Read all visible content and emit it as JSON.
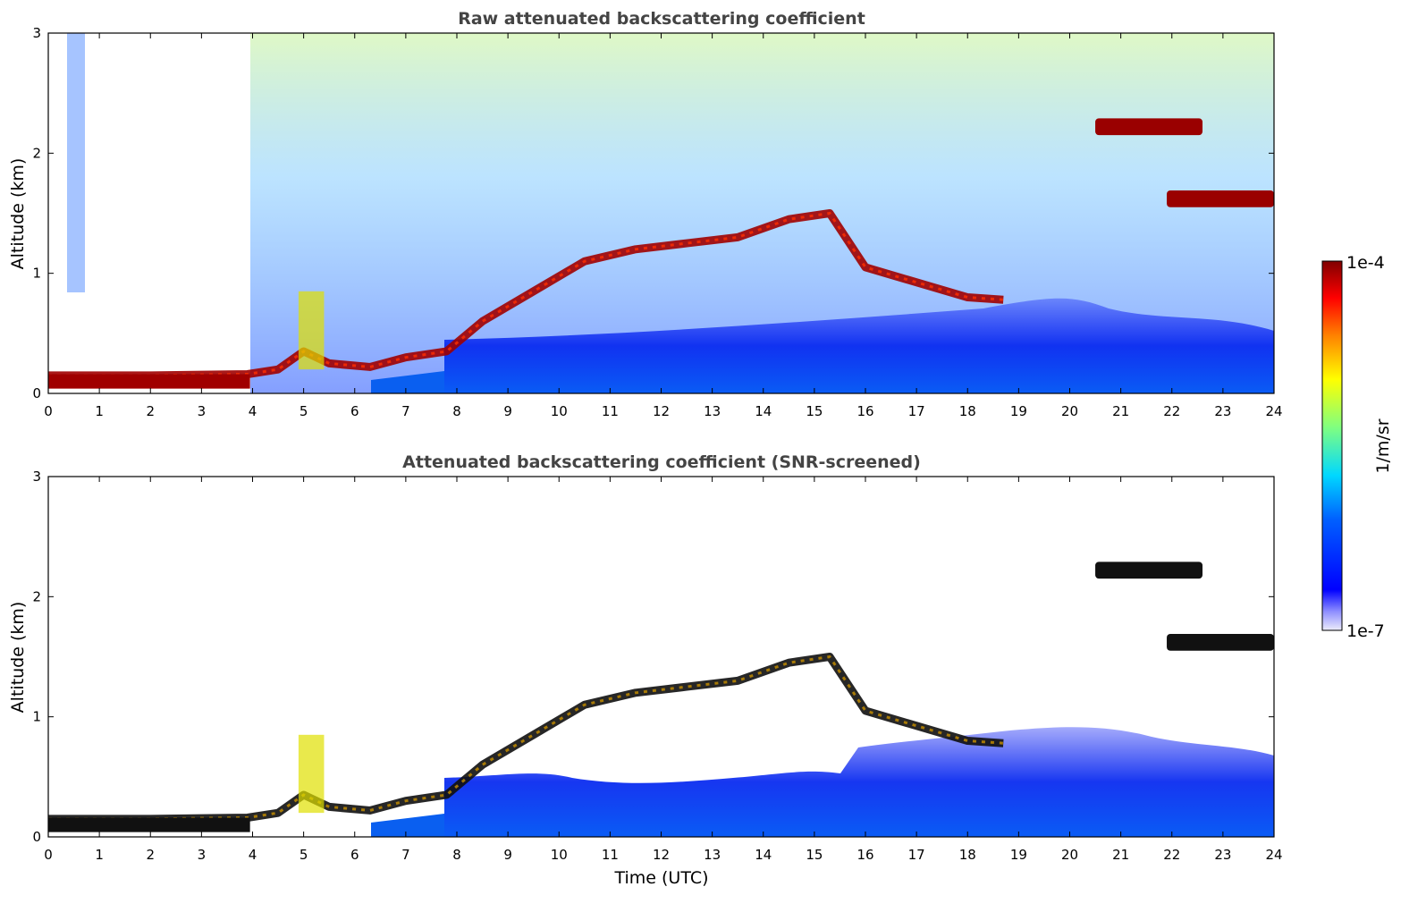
{
  "chart_data": [
    {
      "type": "heatmap",
      "title": "Raw attenuated backscattering coefficient",
      "xlabel": "",
      "ylabel": "Altitude (km)",
      "xlim": [
        0,
        24
      ],
      "ylim": [
        0,
        3
      ],
      "xticks": [
        "0",
        "1",
        "2",
        "3",
        "4",
        "5",
        "6",
        "7",
        "8",
        "9",
        "10",
        "11",
        "12",
        "13",
        "14",
        "15",
        "16",
        "17",
        "18",
        "19",
        "20",
        "21",
        "22",
        "23",
        "24"
      ],
      "yticks": [
        "0",
        "1",
        "2",
        "3"
      ],
      "screened": false,
      "boundary_layer_top_km": [
        [
          0,
          0.15
        ],
        [
          2,
          0.15
        ],
        [
          3.9,
          0.16
        ],
        [
          4.5,
          0.2
        ],
        [
          5,
          0.35
        ],
        [
          5.5,
          0.25
        ],
        [
          6.3,
          0.22
        ],
        [
          7,
          0.3
        ],
        [
          7.8,
          0.35
        ],
        [
          8.5,
          0.6
        ],
        [
          9.5,
          0.85
        ],
        [
          10.5,
          1.1
        ],
        [
          11.5,
          1.2
        ],
        [
          12.5,
          1.25
        ],
        [
          13.5,
          1.3
        ],
        [
          14.5,
          1.45
        ],
        [
          15.3,
          1.5
        ],
        [
          16,
          1.05
        ],
        [
          16.8,
          0.95
        ],
        [
          18,
          0.8
        ],
        [
          18.7,
          0.78
        ]
      ],
      "cloud_layers": [
        {
          "x_start": 20.5,
          "x_end": 22.6,
          "altitude_km": 2.22
        },
        {
          "x_start": 21.9,
          "x_end": 24.0,
          "altitude_km": 1.62
        }
      ]
    },
    {
      "type": "heatmap",
      "title": "Attenuated backscattering coefficient (SNR-screened)",
      "xlabel": "Time (UTC)",
      "ylabel": "Altitude (km)",
      "xlim": [
        0,
        24
      ],
      "ylim": [
        0,
        3
      ],
      "xticks": [
        "0",
        "1",
        "2",
        "3",
        "4",
        "5",
        "6",
        "7",
        "8",
        "9",
        "10",
        "11",
        "12",
        "13",
        "14",
        "15",
        "16",
        "17",
        "18",
        "19",
        "20",
        "21",
        "22",
        "23",
        "24"
      ],
      "yticks": [
        "0",
        "1",
        "2",
        "3"
      ],
      "screened": true
    }
  ],
  "colorbar": {
    "label": "1/m/sr",
    "max_label": "1e-4",
    "min_label": "1e-7",
    "colormap": "jet",
    "colors": [
      "#e8e8f8",
      "#8080ff",
      "#0000ff",
      "#0080ff",
      "#00e0ff",
      "#80ff80",
      "#ffff00",
      "#ff8000",
      "#ff0000",
      "#800000"
    ]
  }
}
